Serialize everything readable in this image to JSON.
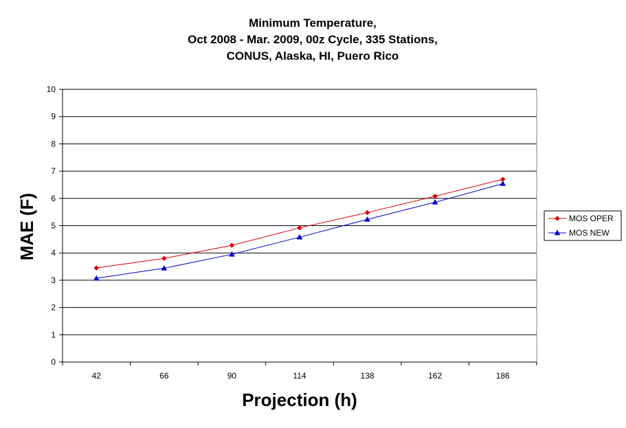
{
  "chart_data": {
    "type": "line",
    "title_lines": [
      "Minimum Temperature,",
      "Oct 2008 - Mar. 2009, 00z Cycle, 335 Stations,",
      "CONUS, Alaska, HI, Puero Rico"
    ],
    "xlabel": "Projection (h)",
    "ylabel": "MAE (F)",
    "categories": [
      "42",
      "66",
      "90",
      "114",
      "138",
      "162",
      "186"
    ],
    "ylim": [
      0,
      10
    ],
    "yticks": [
      "0",
      "1",
      "2",
      "3",
      "4",
      "5",
      "6",
      "7",
      "8",
      "9",
      "10"
    ],
    "grid": "horizontal",
    "legend_position": "right",
    "series": [
      {
        "name": "MOS OPER",
        "color": "#dd0000",
        "marker": "diamond",
        "values": [
          3.45,
          3.8,
          4.28,
          4.92,
          5.48,
          6.08,
          6.7
        ]
      },
      {
        "name": "MOS NEW",
        "color": "#0000cc",
        "marker": "triangle",
        "values": [
          3.07,
          3.44,
          3.95,
          4.58,
          5.23,
          5.86,
          6.54
        ]
      }
    ]
  }
}
